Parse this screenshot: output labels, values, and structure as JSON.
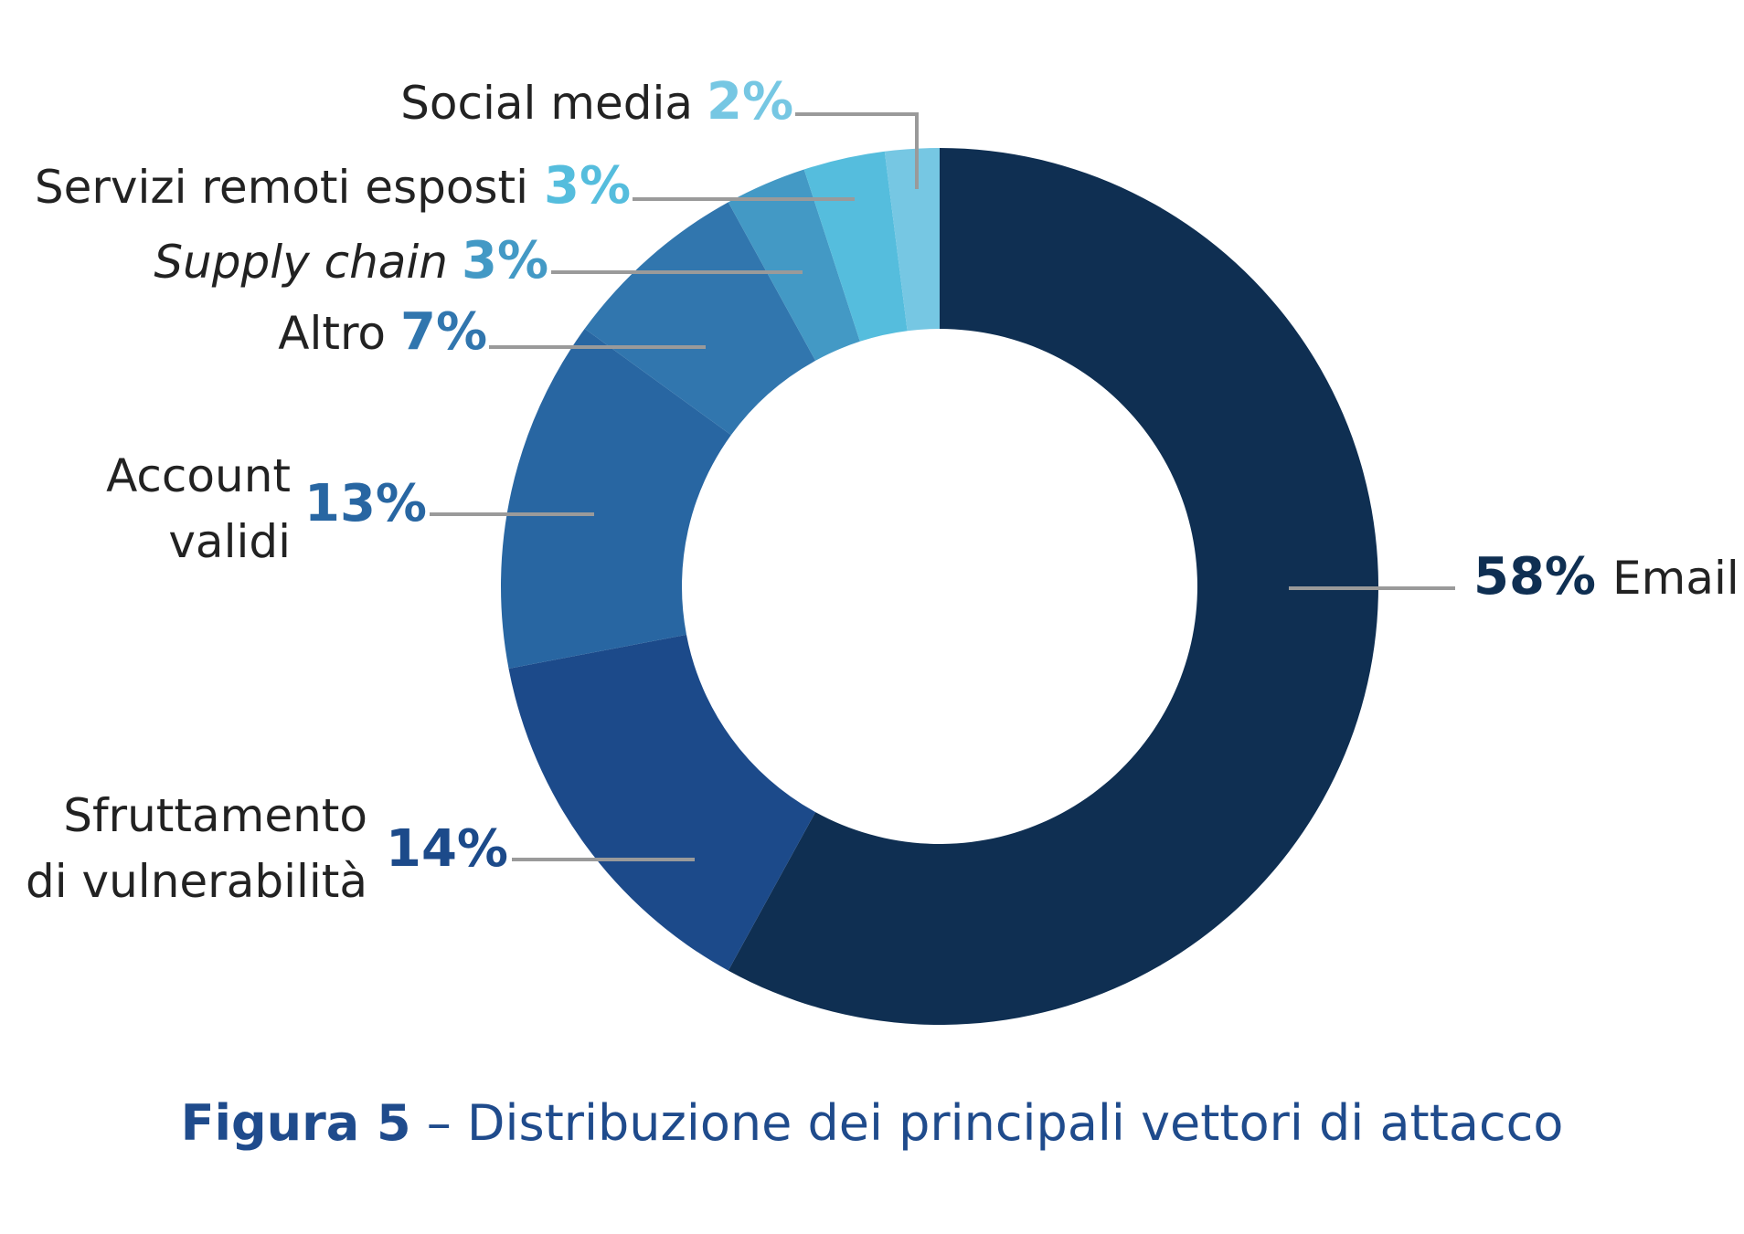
{
  "chart_data": {
    "type": "pie",
    "variant": "donut",
    "slices": [
      {
        "label": "Email",
        "value": 58,
        "value_label": "58%",
        "color": "#0f2f52"
      },
      {
        "label": "Sfruttamento di vulnerabilità",
        "label_lines": [
          "Sfruttamento",
          "di vulnerabilità"
        ],
        "value": 14,
        "value_label": "14%",
        "color": "#1c4a8a"
      },
      {
        "label": "Account validi",
        "label_lines": [
          "Account",
          "validi"
        ],
        "value": 13,
        "value_label": "13%",
        "color": "#2866a2"
      },
      {
        "label": "Altro",
        "value": 7,
        "value_label": "7%",
        "color": "#3176ae"
      },
      {
        "label": "Supply chain",
        "value": 3,
        "value_label": "3%",
        "color": "#4399c5",
        "italic": true
      },
      {
        "label": "Servizi remoti esposti",
        "value": 3,
        "value_label": "3%",
        "color": "#55bddd"
      },
      {
        "label": "Social media",
        "value": 2,
        "value_label": "2%",
        "color": "#76c7e3"
      }
    ],
    "start_angle_deg": 0,
    "direction": "clockwise",
    "label_colors": {
      "text": "#222222",
      "leader": "#9a9a9a"
    }
  },
  "caption": {
    "figure_label": "Figura 5",
    "separator": " – ",
    "text": "Distribuzione dei principali vettori di attacco",
    "color": "#1f4b8c"
  }
}
